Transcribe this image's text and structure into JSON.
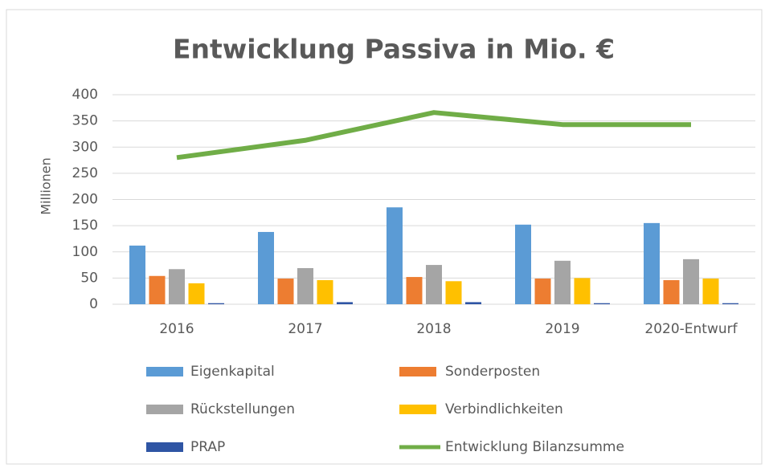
{
  "chart_data": {
    "type": "bar",
    "title": "Entwicklung Passiva in Mio. €",
    "y_label": "Millionen",
    "categories": [
      "2016",
      "2017",
      "2018",
      "2019",
      "2020-Entwurf"
    ],
    "series": [
      {
        "name": "Eigenkapital",
        "color": "#5b9bd5",
        "type": "bar",
        "values": [
          112,
          138,
          185,
          152,
          155
        ]
      },
      {
        "name": "Sonderposten",
        "color": "#ed7d31",
        "type": "bar",
        "values": [
          54,
          49,
          52,
          49,
          46
        ]
      },
      {
        "name": "Rückstellungen",
        "color": "#a5a5a5",
        "type": "bar",
        "values": [
          67,
          69,
          75,
          83,
          86
        ]
      },
      {
        "name": "Verbindlichkeiten",
        "color": "#ffc000",
        "type": "bar",
        "values": [
          40,
          46,
          44,
          50,
          49
        ]
      },
      {
        "name": "PRAP",
        "color": "#2f55a4",
        "type": "bar",
        "values": [
          2,
          4,
          4,
          2,
          2
        ]
      },
      {
        "name": "Entwicklung Bilanzsumme",
        "color": "#70ad47",
        "type": "line",
        "values": [
          280,
          313,
          366,
          343,
          343
        ]
      }
    ],
    "ylim": [
      0,
      400
    ],
    "yticks": [
      0,
      50,
      100,
      150,
      200,
      250,
      300,
      350,
      400
    ],
    "grid": true
  }
}
